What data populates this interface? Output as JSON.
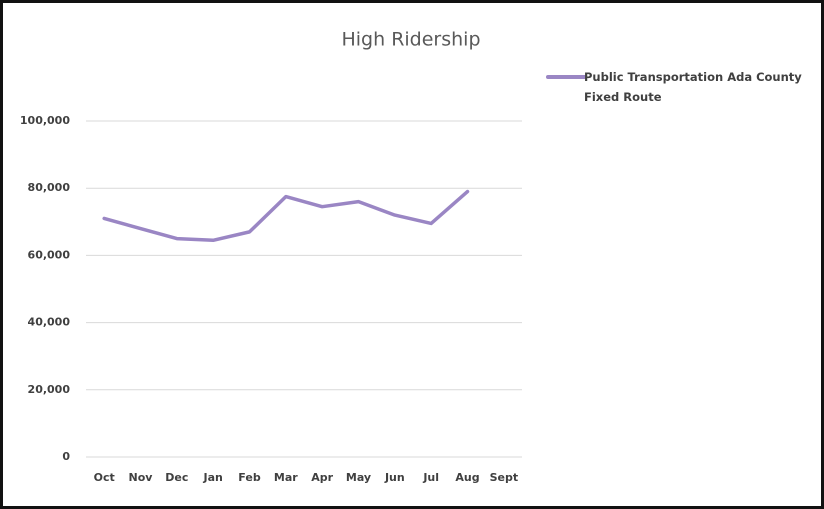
{
  "chart_data": {
    "type": "line",
    "title": "High Ridership",
    "categories": [
      "Oct",
      "Nov",
      "Dec",
      "Jan",
      "Feb",
      "Mar",
      "Apr",
      "May",
      "Jun",
      "Jul",
      "Aug",
      "Sept"
    ],
    "series": [
      {
        "name": "Public Transportation Ada County Fixed Route",
        "color": "#9a86c4",
        "values": [
          71000,
          68000,
          65000,
          64500,
          67000,
          77500,
          74500,
          76000,
          72000,
          69500,
          79000,
          null
        ]
      }
    ],
    "ylim": [
      0,
      100000
    ],
    "yticks": [
      0,
      {
        "value": 20000,
        "label": "20,000"
      },
      {
        "value": 40000,
        "label": "40,000"
      },
      {
        "value": 60000,
        "label": "60,000"
      },
      {
        "value": 80000,
        "label": "80,000"
      },
      {
        "value": 100000,
        "label": "100,000"
      }
    ],
    "grid": true,
    "legend": "right"
  }
}
